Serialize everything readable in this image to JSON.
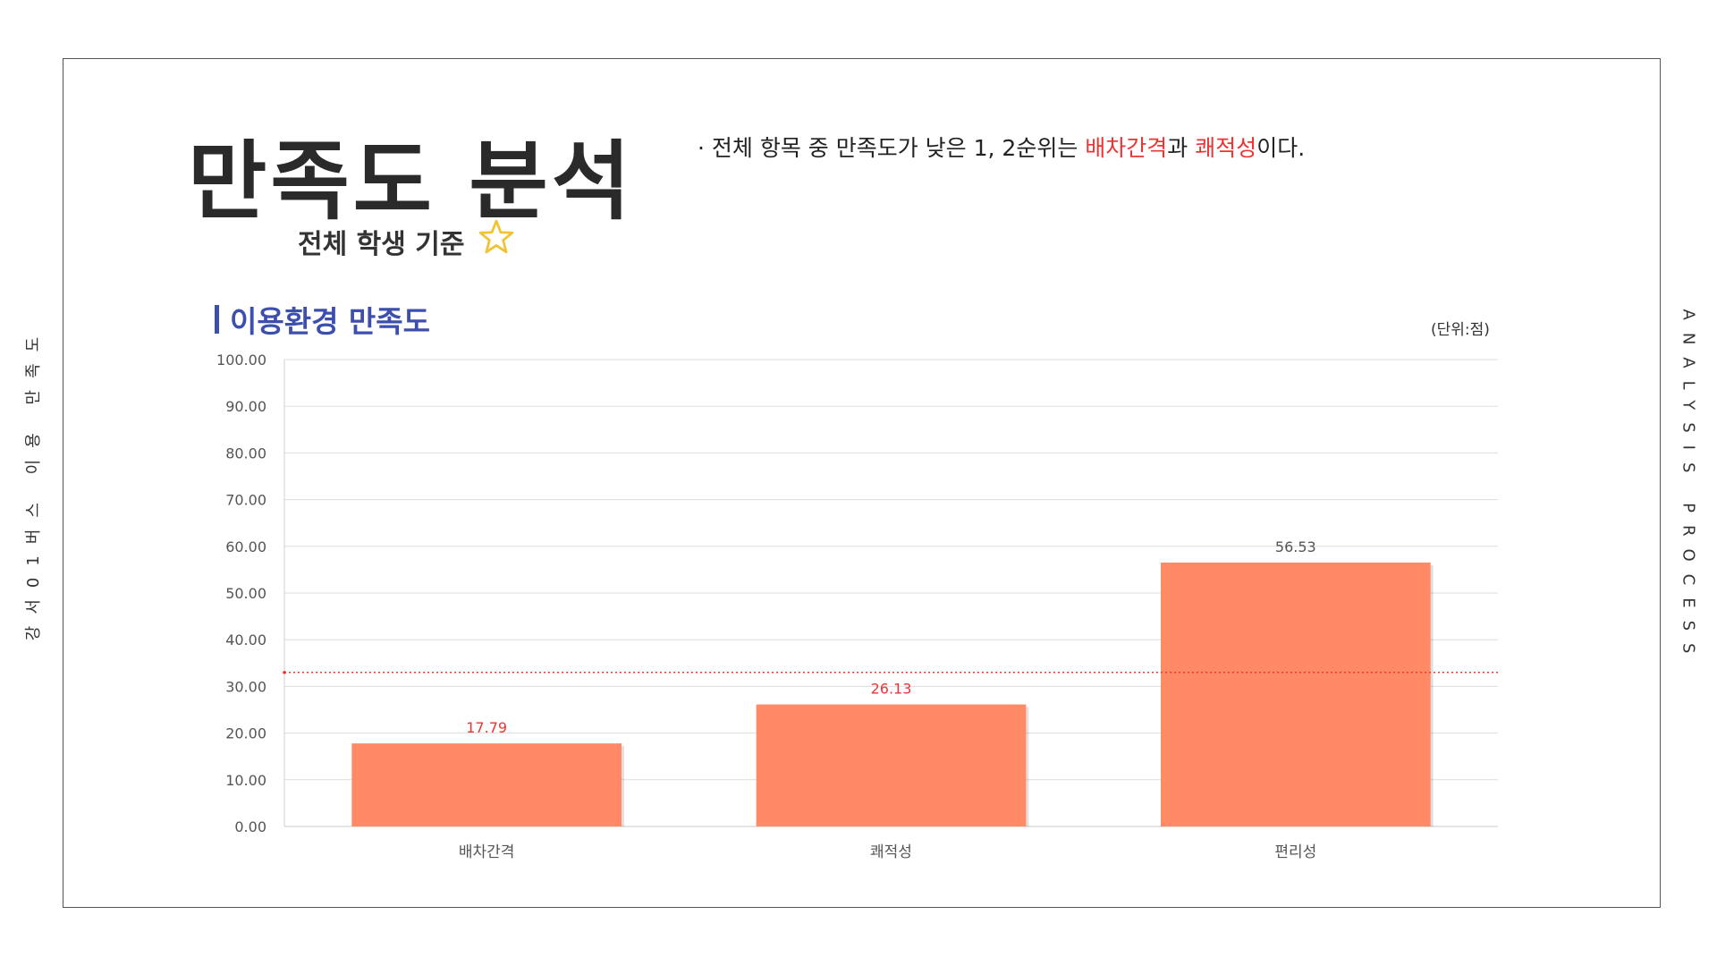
{
  "title": "만족도 분석",
  "subtitle": "전체 학생 기준",
  "note": {
    "prefix": "· 전체 항목 중 만족도가 낮은 1, 2순위는 ",
    "highlight1": "배차간격",
    "middle": "과 ",
    "highlight2": "쾌적성",
    "suffix": "이다."
  },
  "section_title": "이용환경 만족도",
  "unit_label": "(단위:점)",
  "side_left_text": "강서01버스 이용 만족도",
  "side_right_text": "ANALYSIS PROCESS",
  "colors": {
    "bar": "#FF8A65",
    "highlight": "#EE3333",
    "section": "#3D4FAE",
    "average_line": "#EE3333"
  },
  "icons": {
    "star": "star-outline-icon"
  },
  "chart_data": {
    "type": "bar",
    "categories": [
      "배차간격",
      "쾌적성",
      "편리성"
    ],
    "values": [
      17.79,
      26.13,
      56.53
    ],
    "value_labels": [
      "17.79",
      "26.13",
      "56.53"
    ],
    "label_colors": [
      "#EE3333",
      "#EE3333",
      "#555555"
    ],
    "ylim": [
      0,
      100
    ],
    "yticks": [
      "0.00",
      "10.00",
      "20.00",
      "30.00",
      "40.00",
      "50.00",
      "60.00",
      "70.00",
      "80.00",
      "90.00",
      "100.00"
    ],
    "average_line": 33.0,
    "grid": true,
    "legend": "none"
  }
}
